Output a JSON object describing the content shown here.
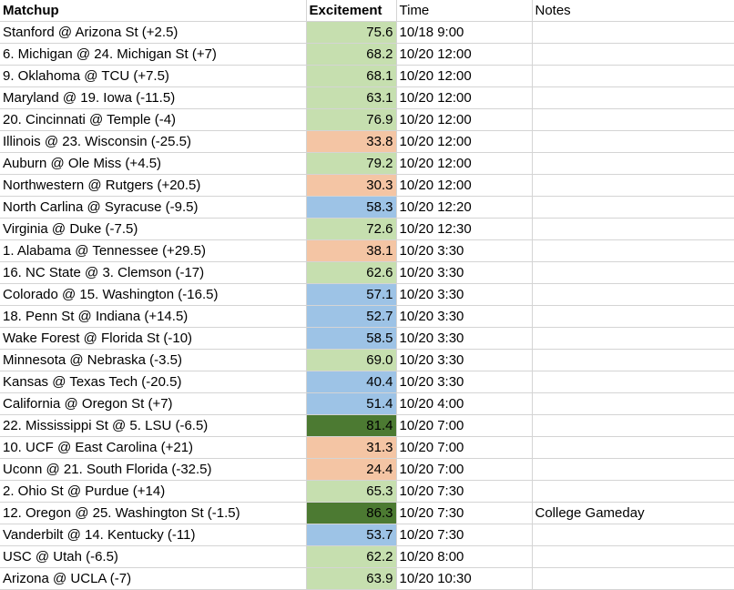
{
  "headers": {
    "matchup": "Matchup",
    "excitement": "Excitement",
    "time": "Time",
    "notes": "Notes"
  },
  "colors": {
    "green": "#c6dfaf",
    "orange": "#f4c5a4",
    "blue": "#9dc3e6",
    "dark_green": "#4c7a32"
  },
  "rows": [
    {
      "matchup": "Stanford @ Arizona St (+2.5)",
      "excitement": "75.6",
      "time": "10/18 9:00",
      "notes": "",
      "color": "green"
    },
    {
      "matchup": "6. Michigan @ 24. Michigan St (+7)",
      "excitement": "68.2",
      "time": "10/20 12:00",
      "notes": "",
      "color": "green"
    },
    {
      "matchup": "9. Oklahoma @ TCU (+7.5)",
      "excitement": "68.1",
      "time": "10/20 12:00",
      "notes": "",
      "color": "green"
    },
    {
      "matchup": "Maryland @ 19. Iowa (-11.5)",
      "excitement": "63.1",
      "time": "10/20 12:00",
      "notes": "",
      "color": "green"
    },
    {
      "matchup": "20. Cincinnati @ Temple (-4)",
      "excitement": "76.9",
      "time": "10/20 12:00",
      "notes": "",
      "color": "green"
    },
    {
      "matchup": "Illinois @ 23. Wisconsin (-25.5)",
      "excitement": "33.8",
      "time": "10/20 12:00",
      "notes": "",
      "color": "orange"
    },
    {
      "matchup": "Auburn @ Ole Miss (+4.5)",
      "excitement": "79.2",
      "time": "10/20 12:00",
      "notes": "",
      "color": "green"
    },
    {
      "matchup": "Northwestern @ Rutgers (+20.5)",
      "excitement": "30.3",
      "time": "10/20 12:00",
      "notes": "",
      "color": "orange"
    },
    {
      "matchup": "North Carlina @ Syracuse (-9.5)",
      "excitement": "58.3",
      "time": "10/20 12:20",
      "notes": "",
      "color": "blue"
    },
    {
      "matchup": "Virginia @ Duke (-7.5)",
      "excitement": "72.6",
      "time": "10/20 12:30",
      "notes": "",
      "color": "green"
    },
    {
      "matchup": "1. Alabama @ Tennessee (+29.5)",
      "excitement": "38.1",
      "time": "10/20 3:30",
      "notes": "",
      "color": "orange"
    },
    {
      "matchup": "16. NC State @ 3. Clemson (-17)",
      "excitement": "62.6",
      "time": "10/20 3:30",
      "notes": "",
      "color": "green"
    },
    {
      "matchup": "Colorado @ 15. Washington (-16.5)",
      "excitement": "57.1",
      "time": "10/20 3:30",
      "notes": "",
      "color": "blue"
    },
    {
      "matchup": "18. Penn St @ Indiana (+14.5)",
      "excitement": "52.7",
      "time": "10/20 3:30",
      "notes": "",
      "color": "blue"
    },
    {
      "matchup": "Wake Forest @ Florida St (-10)",
      "excitement": "58.5",
      "time": "10/20 3:30",
      "notes": "",
      "color": "blue"
    },
    {
      "matchup": "Minnesota @ Nebraska (-3.5)",
      "excitement": "69.0",
      "time": "10/20 3:30",
      "notes": "",
      "color": "green"
    },
    {
      "matchup": "Kansas @ Texas Tech (-20.5)",
      "excitement": "40.4",
      "time": "10/20 3:30",
      "notes": "",
      "color": "blue"
    },
    {
      "matchup": "California @ Oregon St (+7)",
      "excitement": "51.4",
      "time": "10/20 4:00",
      "notes": "",
      "color": "blue"
    },
    {
      "matchup": "22. Mississippi St @ 5. LSU (-6.5)",
      "excitement": "81.4",
      "time": "10/20 7:00",
      "notes": "",
      "color": "dark_green"
    },
    {
      "matchup": "10. UCF @ East Carolina (+21)",
      "excitement": "31.3",
      "time": "10/20 7:00",
      "notes": "",
      "color": "orange"
    },
    {
      "matchup": "Uconn @ 21. South Florida (-32.5)",
      "excitement": "24.4",
      "time": "10/20 7:00",
      "notes": "",
      "color": "orange"
    },
    {
      "matchup": "2. Ohio St @ Purdue (+14)",
      "excitement": "65.3",
      "time": "10/20 7:30",
      "notes": "",
      "color": "green"
    },
    {
      "matchup": "12. Oregon @ 25. Washington St (-1.5)",
      "excitement": "86.3",
      "time": "10/20 7:30",
      "notes": "College Gameday",
      "color": "dark_green"
    },
    {
      "matchup": "Vanderbilt @ 14. Kentucky (-11)",
      "excitement": "53.7",
      "time": "10/20 7:30",
      "notes": "",
      "color": "blue"
    },
    {
      "matchup": "USC @ Utah (-6.5)",
      "excitement": "62.2",
      "time": "10/20 8:00",
      "notes": "",
      "color": "green"
    },
    {
      "matchup": "Arizona @ UCLA (-7)",
      "excitement": "63.9",
      "time": "10/20 10:30",
      "notes": "",
      "color": "green"
    }
  ]
}
